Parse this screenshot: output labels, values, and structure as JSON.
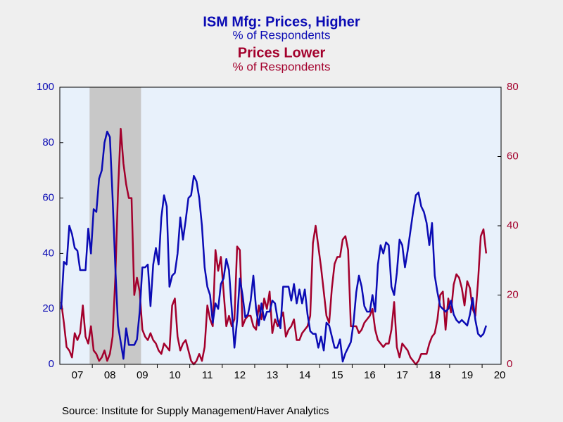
{
  "chart_data": {
    "type": "line",
    "categories": [
      null,
      null,
      null,
      null,
      null,
      null,
      "07",
      null,
      null,
      null,
      null,
      null,
      null,
      null,
      null,
      null,
      null,
      null,
      "08",
      null,
      null,
      null,
      null,
      null,
      null,
      null,
      null,
      null,
      null,
      null,
      "09",
      null,
      null,
      null,
      null,
      null,
      null,
      null,
      null,
      null,
      null,
      null,
      "10",
      null,
      null,
      null,
      null,
      null,
      null,
      null,
      null,
      null,
      null,
      null,
      "11",
      null,
      null,
      null,
      null,
      null,
      null,
      null,
      null,
      null,
      null,
      null,
      "12",
      null,
      null,
      null,
      null,
      null,
      null,
      null,
      null,
      null,
      null,
      null,
      "13",
      null,
      null,
      null,
      null,
      null,
      null,
      null,
      null,
      null,
      null,
      null,
      "14",
      null,
      null,
      null,
      null,
      null,
      null,
      null,
      null,
      null,
      null,
      null,
      "15",
      null,
      null,
      null,
      null,
      null,
      null,
      null,
      null,
      null,
      null,
      null,
      "16",
      null,
      null,
      null,
      null,
      null,
      null,
      null,
      null,
      null,
      null,
      null,
      "17",
      null,
      null,
      null,
      null,
      null,
      null,
      null,
      null,
      null,
      null,
      null,
      "18",
      null,
      null,
      null,
      null,
      null,
      null,
      null,
      null,
      null,
      null,
      null,
      "19",
      null,
      null,
      null,
      null,
      null,
      null,
      null,
      null,
      null,
      null,
      null,
      "20"
    ],
    "series": [
      {
        "name": "ISM Mfg: Prices, Higher",
        "unit": "% of Respondents",
        "color": "#0b0bb4",
        "axis": "y",
        "values": [
          20,
          37,
          36,
          50,
          47,
          42,
          41,
          34,
          34,
          34,
          49,
          40,
          56,
          55,
          67,
          70,
          80,
          84,
          82,
          60,
          35,
          14,
          8,
          2,
          13,
          7,
          7,
          7,
          9,
          19,
          35,
          35,
          36,
          21,
          36,
          42,
          36,
          53,
          61,
          57,
          28,
          32,
          33,
          40,
          53,
          45,
          52,
          60,
          61,
          68,
          66,
          60,
          50,
          35,
          28,
          25,
          15,
          22,
          20,
          29,
          31,
          38,
          34,
          20,
          6,
          16,
          31,
          25,
          17,
          18,
          23,
          32,
          20,
          14,
          22,
          16,
          19,
          19,
          23,
          22,
          16,
          13,
          28,
          28,
          28,
          23,
          29,
          22,
          27,
          22,
          27,
          18,
          12,
          11,
          11,
          6,
          10,
          5,
          15,
          14,
          10,
          6,
          6,
          9,
          1,
          4,
          6,
          8,
          15,
          26,
          32,
          28,
          21,
          19,
          19,
          25,
          19,
          36,
          43,
          40,
          44,
          43,
          28,
          25,
          33,
          45,
          43,
          35,
          41,
          48,
          55,
          61,
          62,
          57,
          55,
          51,
          43,
          51,
          32,
          26,
          21,
          20,
          19,
          20,
          23,
          18,
          16,
          15,
          16,
          15,
          14,
          18,
          24,
          16,
          11,
          10,
          11,
          14,
          null,
          null,
          null,
          null,
          null
        ]
      },
      {
        "name": "Prices Lower",
        "unit": "% of Respondents",
        "color": "#a3002c",
        "axis": "y2",
        "values": [
          18,
          12,
          5,
          4,
          2,
          9,
          7,
          9,
          17,
          8,
          6,
          11,
          4,
          3,
          1,
          2,
          4,
          1,
          3,
          8,
          25,
          50,
          68,
          58,
          52,
          48,
          48,
          20,
          25,
          21,
          10,
          8,
          7,
          9,
          7,
          6,
          4,
          3,
          6,
          5,
          4,
          17,
          19,
          8,
          4,
          6,
          7,
          4,
          1,
          0,
          1,
          3,
          1,
          5,
          17,
          13,
          11,
          33,
          27,
          31,
          21,
          11,
          14,
          11,
          13,
          34,
          33,
          11,
          13,
          14,
          14,
          11,
          10,
          17,
          13,
          19,
          16,
          21,
          9,
          13,
          11,
          13,
          15,
          8,
          10,
          11,
          13,
          7,
          7,
          9,
          10,
          11,
          14,
          35,
          40,
          34,
          28,
          21,
          14,
          12,
          22,
          29,
          31,
          31,
          36,
          37,
          33,
          11,
          11,
          11,
          9,
          10,
          12,
          13,
          14,
          16,
          10,
          7,
          6,
          5,
          6,
          6,
          10,
          18,
          5,
          2,
          6,
          5,
          4,
          2,
          1,
          0,
          1,
          3,
          3,
          3,
          6,
          8,
          9,
          13,
          20,
          21,
          10,
          19,
          15,
          23,
          26,
          25,
          22,
          17,
          24,
          22,
          16,
          14,
          24,
          37,
          39,
          32,
          null,
          null,
          null,
          null,
          null
        ]
      }
    ],
    "shaded_ranges": [
      [
        11,
        29
      ]
    ],
    "ylim": [
      0,
      100
    ],
    "yticks": [
      0,
      20,
      40,
      60,
      80,
      100
    ],
    "y2lim": [
      0,
      80
    ],
    "y2ticks": [
      0,
      20,
      40,
      60,
      80
    ],
    "grid": false,
    "source": "Source:  Institute for Supply Management/Haver Analytics"
  }
}
